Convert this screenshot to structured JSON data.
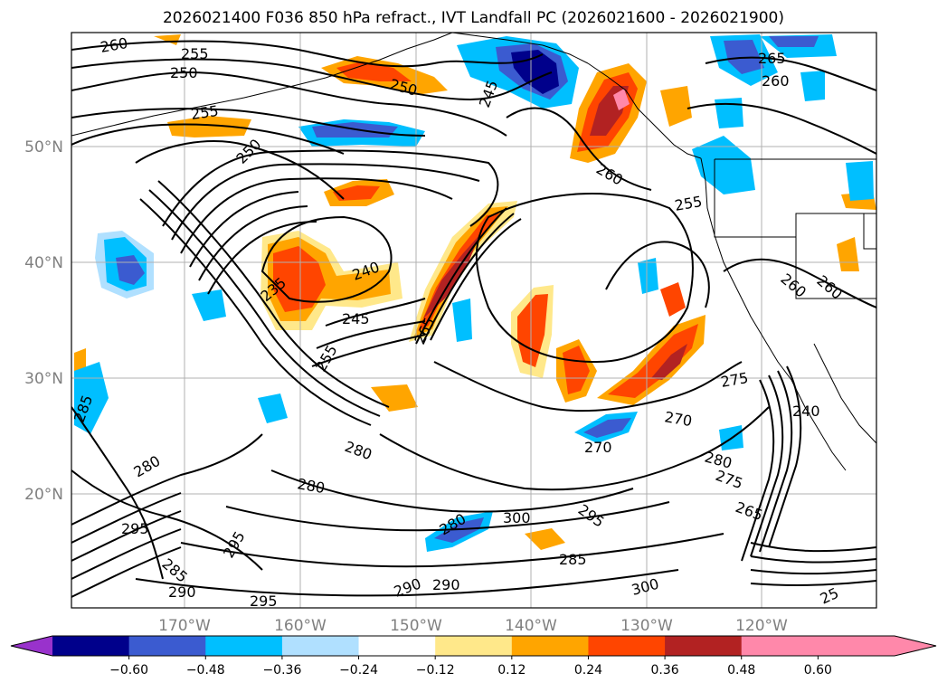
{
  "title": "2026021400 F036 850 hPa refract., IVT Landfall PC (2026021600 - 2026021900)",
  "latitude_labels": [
    "50°N",
    "40°N",
    "30°N",
    "20°N"
  ],
  "longitude_labels": [
    "170°W",
    "160°W",
    "150°W",
    "140°W",
    "130°W",
    "120°W"
  ],
  "colorbar": {
    "tick_labels": [
      "−0.60",
      "−0.48",
      "−0.36",
      "−0.24",
      "−0.12",
      "0.12",
      "0.24",
      "0.36",
      "0.48",
      "0.60"
    ],
    "colors": [
      "#9932cc",
      "#00008b",
      "#3b5bd0",
      "#00bfff",
      "#b0e0ff",
      "#ffffff",
      "#ffe88a",
      "#ffa500",
      "#ff4500",
      "#b22222",
      "#ff88aa"
    ]
  },
  "contour_labels": [
    "260",
    "255",
    "250",
    "255",
    "250",
    "250",
    "245",
    "265",
    "260",
    "260",
    "255",
    "235",
    "240",
    "245",
    "255",
    "265",
    "260",
    "260",
    "275",
    "270",
    "240",
    "270",
    "280",
    "275",
    "265",
    "280",
    "280",
    "280",
    "285",
    "295",
    "280",
    "285",
    "290",
    "295",
    "295",
    "290",
    "290",
    "300",
    "285",
    "295",
    "300",
    "25"
  ]
}
